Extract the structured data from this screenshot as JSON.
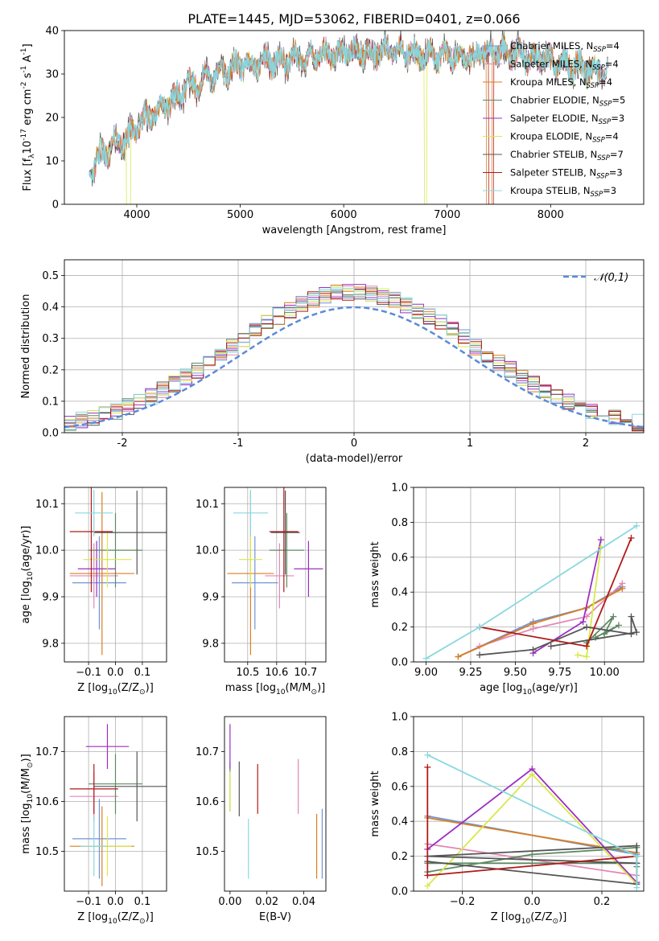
{
  "figure": {
    "title": "PLATE=1445, MJD=53062, FIBERID=0401, z=0.066"
  },
  "colors": {
    "Chabrier MILES": "#6f94d8",
    "Salpeter MILES": "#e387b5",
    "Kroupa MILES": "#d97f22",
    "Chabrier ELODIE": "#5d8a62",
    "Salpeter ELODIE": "#9b2fc2",
    "Kroupa ELODIE": "#d9e84a",
    "Chabrier STELIB": "#555555",
    "Salpeter STELIB": "#b01a1a",
    "Kroupa STELIB": "#88d8df"
  },
  "chart_data": [
    {
      "id": "spectrum",
      "type": "line",
      "title": "PLATE=1445, MJD=53062, FIBERID=0401, z=0.066",
      "xlabel": "wavelength [Angstrom, rest frame]",
      "ylabel": "Flux [f$_\\lambda$10$^{-17}$ erg cm$^{-2}$ s$^{-1}$ A$^{-1}$]",
      "xlim": [
        3300,
        8900
      ],
      "ylim": [
        0,
        40
      ],
      "xticks": [
        4000,
        5000,
        6000,
        7000,
        8000
      ],
      "yticks": [
        0,
        10,
        20,
        30,
        40
      ],
      "grid": false,
      "legend_position": "top-right",
      "legend": [
        {
          "model": "Chabrier MILES",
          "label": "Chabrier MILES, N",
          "sub": "SSP",
          "suffix": "=4"
        },
        {
          "model": "Salpeter MILES",
          "label": "Salpeter MILES, N",
          "sub": "SSP",
          "suffix": "=4"
        },
        {
          "model": "Kroupa MILES",
          "label": "Kroupa MILES, N",
          "sub": "SSP",
          "suffix": "=4"
        },
        {
          "model": "Chabrier ELODIE",
          "label": "Chabrier ELODIE, N",
          "sub": "SSP",
          "suffix": "=5"
        },
        {
          "model": "Salpeter ELODIE",
          "label": "Salpeter ELODIE, N",
          "sub": "SSP",
          "suffix": "=3"
        },
        {
          "model": "Kroupa ELODIE",
          "label": "Kroupa ELODIE, N",
          "sub": "SSP",
          "suffix": "=4"
        },
        {
          "model": "Chabrier STELIB",
          "label": "Chabrier STELIB, N",
          "sub": "SSP",
          "suffix": "=7"
        },
        {
          "model": "Salpeter STELIB",
          "label": "Salpeter STELIB, N",
          "sub": "SSP",
          "suffix": "=3"
        },
        {
          "model": "Kroupa STELIB",
          "label": "Kroupa STELIB, N",
          "sub": "SSP",
          "suffix": "=3"
        }
      ],
      "continuum": [
        [
          3550,
          8
        ],
        [
          3650,
          11
        ],
        [
          3800,
          14
        ],
        [
          3900,
          15
        ],
        [
          4000,
          18
        ],
        [
          4100,
          20
        ],
        [
          4200,
          22
        ],
        [
          4300,
          23
        ],
        [
          4400,
          25
        ],
        [
          4500,
          27
        ],
        [
          4600,
          28
        ],
        [
          4700,
          29
        ],
        [
          4800,
          30
        ],
        [
          4900,
          31
        ],
        [
          5000,
          32
        ],
        [
          5100,
          32
        ],
        [
          5200,
          33
        ],
        [
          5300,
          33
        ],
        [
          5400,
          33
        ],
        [
          5500,
          33
        ],
        [
          5600,
          34
        ],
        [
          5800,
          34
        ],
        [
          6000,
          35
        ],
        [
          6200,
          35
        ],
        [
          6400,
          35
        ],
        [
          6600,
          35
        ],
        [
          6800,
          34
        ],
        [
          7000,
          34
        ],
        [
          7200,
          34
        ],
        [
          7400,
          35
        ],
        [
          7600,
          35
        ],
        [
          7800,
          34
        ],
        [
          8000,
          33
        ],
        [
          8200,
          32
        ],
        [
          8400,
          31
        ],
        [
          8550,
          30
        ]
      ],
      "dropouts": [
        {
          "model": "Kroupa ELODIE",
          "x": 3920,
          "range": [
            3900,
            3940
          ]
        },
        {
          "model": "Kroupa ELODIE",
          "x": 6790,
          "range": [
            6780,
            6800
          ]
        },
        {
          "model": "Kroupa MILES",
          "x": 7400,
          "range": [
            7380,
            7430
          ]
        },
        {
          "model": "Salpeter STELIB",
          "x": 7420,
          "range": [
            7400,
            7450
          ]
        }
      ]
    },
    {
      "id": "residuals",
      "type": "histogram",
      "xlabel": "(data-model)/error",
      "ylabel": "Normed distribution",
      "xlim": [
        -2.5,
        2.5
      ],
      "ylim": [
        0,
        0.55
      ],
      "xticks": [
        -2,
        -1,
        0,
        1,
        2
      ],
      "yticks": [
        0.0,
        0.1,
        0.2,
        0.3,
        0.4,
        0.5
      ],
      "grid": true,
      "legend_position": "top-right",
      "reference_label": "$\\mathcal{N}(0,1)$",
      "bin_width": 0.1
    },
    {
      "id": "age-vs-z",
      "type": "scatter",
      "xlabel": "Z [log$_{10}$(Z/Z$_\\odot$)]",
      "ylabel": "age  [log$_{10}$(age/yr)]",
      "xlim": [
        -0.19,
        0.19
      ],
      "ylim": [
        9.76,
        10.135
      ],
      "xticks": [
        -0.1,
        0.0,
        0.1
      ],
      "yticks": [
        9.8,
        9.9,
        10.0,
        10.1
      ],
      "grid": true,
      "points": [
        {
          "model": "Chabrier MILES",
          "x": -0.06,
          "xerr": 0.1,
          "y": 9.93,
          "yerr": 0.1
        },
        {
          "model": "Salpeter MILES",
          "x": -0.08,
          "xerr": 0.09,
          "y": 9.945,
          "yerr": 0.07
        },
        {
          "model": "Kroupa MILES",
          "x": -0.05,
          "xerr": 0.12,
          "y": 9.95,
          "yerr": 0.175
        },
        {
          "model": "Chabrier ELODIE",
          "x": 0.0,
          "xerr": 0.1,
          "y": 10.0,
          "yerr": 0.08
        },
        {
          "model": "Salpeter ELODIE",
          "x": -0.07,
          "xerr": 0.07,
          "y": 9.96,
          "yerr": 0.06
        },
        {
          "model": "Kroupa ELODIE",
          "x": -0.03,
          "xerr": 0.09,
          "y": 9.98,
          "yerr": 0.06
        },
        {
          "model": "Chabrier STELIB",
          "x": 0.08,
          "xerr": 0.16,
          "y": 10.038,
          "yerr": 0.09
        },
        {
          "model": "Salpeter STELIB",
          "x": -0.09,
          "xerr": 0.08,
          "y": 10.04,
          "yerr": 0.13
        },
        {
          "model": "Kroupa STELIB",
          "x": -0.08,
          "xerr": 0.07,
          "y": 10.08,
          "yerr": 0.05
        }
      ]
    },
    {
      "id": "age-vs-mass",
      "type": "scatter",
      "xlabel": "mass [log$_{10}$(M/M$_\\odot$)]",
      "xlim": [
        10.42,
        10.77
      ],
      "ylim": [
        9.76,
        10.135
      ],
      "xticks": [
        10.5,
        10.6,
        10.7
      ],
      "yticks": [
        9.8,
        9.9,
        10.0,
        10.1
      ],
      "grid": true,
      "points": [
        {
          "model": "Chabrier MILES",
          "x": 10.525,
          "xerr": 0.08,
          "y": 9.93,
          "yerr": 0.1
        },
        {
          "model": "Salpeter MILES",
          "x": 10.61,
          "xerr": 0.05,
          "y": 9.945,
          "yerr": 0.07
        },
        {
          "model": "Kroupa MILES",
          "x": 10.51,
          "xerr": 0.08,
          "y": 9.95,
          "yerr": 0.175
        },
        {
          "model": "Chabrier ELODIE",
          "x": 10.635,
          "xerr": 0.06,
          "y": 10.0,
          "yerr": 0.08
        },
        {
          "model": "Salpeter ELODIE",
          "x": 10.71,
          "xerr": 0.05,
          "y": 9.96,
          "yerr": 0.06
        },
        {
          "model": "Kroupa ELODIE",
          "x": 10.51,
          "xerr": 0.04,
          "y": 9.98,
          "yerr": 0.06
        },
        {
          "model": "Chabrier STELIB",
          "x": 10.63,
          "xerr": 0.05,
          "y": 10.038,
          "yerr": 0.09
        },
        {
          "model": "Salpeter STELIB",
          "x": 10.625,
          "xerr": 0.05,
          "y": 10.04,
          "yerr": 0.13
        },
        {
          "model": "Kroupa STELIB",
          "x": 10.51,
          "xerr": 0.06,
          "y": 10.08,
          "yerr": 0.05
        }
      ]
    },
    {
      "id": "weight-vs-age",
      "type": "line",
      "xlabel": "age  [log$_{10}$(age/yr)]",
      "ylabel": "mass weight",
      "xlim": [
        8.93,
        10.22
      ],
      "ylim": [
        0,
        1
      ],
      "xticks": [
        9.0,
        9.25,
        9.5,
        9.75,
        10.0
      ],
      "xtick_labels": [
        "9.00",
        "9.25",
        "9.50",
        "9.75",
        "10.00"
      ],
      "yticks": [
        0.0,
        0.2,
        0.4,
        0.6,
        0.8,
        1.0
      ],
      "grid": true,
      "series": [
        {
          "model": "Chabrier MILES",
          "points": [
            [
              9.18,
              0.03
            ],
            [
              9.6,
              0.23
            ],
            [
              9.9,
              0.31
            ],
            [
              10.1,
              0.43
            ]
          ]
        },
        {
          "model": "Salpeter MILES",
          "points": [
            [
              9.3,
              0.09
            ],
            [
              9.6,
              0.19
            ],
            [
              9.9,
              0.26
            ],
            [
              10.1,
              0.45
            ]
          ]
        },
        {
          "model": "Kroupa MILES",
          "points": [
            [
              9.18,
              0.03
            ],
            [
              9.6,
              0.22
            ],
            [
              9.9,
              0.31
            ],
            [
              10.1,
              0.42
            ]
          ]
        },
        {
          "model": "Chabrier ELODIE",
          "points": [
            [
              9.9,
              0.11
            ],
            [
              10.05,
              0.26
            ],
            [
              10.0,
              0.16
            ],
            [
              10.08,
              0.21
            ],
            [
              9.95,
              0.14
            ]
          ]
        },
        {
          "model": "Salpeter ELODIE",
          "points": [
            [
              9.6,
              0.05
            ],
            [
              9.88,
              0.23
            ],
            [
              9.98,
              0.7
            ]
          ]
        },
        {
          "model": "Kroupa ELODIE",
          "points": [
            [
              9.85,
              0.04
            ],
            [
              9.9,
              0.03
            ],
            [
              9.98,
              0.66
            ]
          ]
        },
        {
          "model": "Chabrier STELIB",
          "points": [
            [
              9.3,
              0.04
            ],
            [
              9.6,
              0.07
            ],
            [
              9.9,
              0.2
            ],
            [
              10.15,
              0.16
            ],
            [
              10.15,
              0.26
            ],
            [
              10.18,
              0.17
            ],
            [
              9.7,
              0.09
            ]
          ]
        },
        {
          "model": "Salpeter STELIB",
          "points": [
            [
              9.3,
              0.2
            ],
            [
              9.9,
              0.09
            ],
            [
              10.15,
              0.71
            ]
          ]
        },
        {
          "model": "Kroupa STELIB",
          "points": [
            [
              9.0,
              0.02
            ],
            [
              9.3,
              0.2
            ],
            [
              10.18,
              0.78
            ]
          ]
        }
      ]
    },
    {
      "id": "mass-vs-z",
      "type": "scatter",
      "xlabel": "Z [log$_{10}$(Z/Z$_\\odot$)]",
      "ylabel": "mass [log$_{10}$(M/M$_\\odot$)]",
      "xlim": [
        -0.19,
        0.19
      ],
      "ylim": [
        10.42,
        10.77
      ],
      "xticks": [
        -0.1,
        0.0,
        0.1
      ],
      "yticks": [
        10.5,
        10.6,
        10.7
      ],
      "grid": true,
      "points": [
        {
          "model": "Chabrier MILES",
          "x": -0.06,
          "xerr": 0.1,
          "y": 10.525,
          "yerr": 0.08
        },
        {
          "model": "Salpeter MILES",
          "x": -0.08,
          "xerr": 0.09,
          "y": 10.61,
          "yerr": 0.05
        },
        {
          "model": "Kroupa MILES",
          "x": -0.05,
          "xerr": 0.12,
          "y": 10.51,
          "yerr": 0.08
        },
        {
          "model": "Chabrier ELODIE",
          "x": 0.0,
          "xerr": 0.1,
          "y": 10.635,
          "yerr": 0.06
        },
        {
          "model": "Salpeter ELODIE",
          "x": -0.03,
          "xerr": 0.08,
          "y": 10.71,
          "yerr": 0.045
        },
        {
          "model": "Kroupa ELODIE",
          "x": -0.03,
          "xerr": 0.09,
          "y": 10.51,
          "yerr": 0.06
        },
        {
          "model": "Chabrier STELIB",
          "x": 0.08,
          "xerr": 0.16,
          "y": 10.63,
          "yerr": 0.07
        },
        {
          "model": "Salpeter STELIB",
          "x": -0.08,
          "xerr": 0.09,
          "y": 10.625,
          "yerr": 0.05
        },
        {
          "model": "Kroupa STELIB",
          "x": -0.08,
          "xerr": 0.05,
          "y": 10.51,
          "yerr": 0.06
        }
      ]
    },
    {
      "id": "mass-vs-ebv",
      "type": "scatter",
      "xlabel": "E(B-V)",
      "xlim": [
        -0.003,
        0.052
      ],
      "ylim": [
        10.42,
        10.77
      ],
      "xticks": [
        0.0,
        0.02,
        0.04
      ],
      "xtick_labels": [
        "0.00",
        "0.02",
        "0.04"
      ],
      "yticks": [
        10.5,
        10.6,
        10.7
      ],
      "grid": false,
      "points": [
        {
          "model": "Chabrier MILES",
          "x": 0.05,
          "y": 10.515,
          "yerr": 0.07
        },
        {
          "model": "Salpeter MILES",
          "x": 0.037,
          "y": 10.63,
          "yerr": 0.055
        },
        {
          "model": "Kroupa MILES",
          "x": 0.047,
          "y": 10.51,
          "yerr": 0.065
        },
        {
          "model": "Chabrier ELODIE",
          "x": 0.0,
          "y": 10.63,
          "yerr": 0.05
        },
        {
          "model": "Salpeter ELODIE",
          "x": 0.0,
          "y": 10.71,
          "yerr": 0.045
        },
        {
          "model": "Kroupa ELODIE",
          "x": 0.0,
          "y": 10.62,
          "yerr": 0.04
        },
        {
          "model": "Chabrier STELIB",
          "x": 0.005,
          "y": 10.625,
          "yerr": 0.055
        },
        {
          "model": "Salpeter STELIB",
          "x": 0.015,
          "y": 10.625,
          "yerr": 0.05
        },
        {
          "model": "Kroupa STELIB",
          "x": 0.01,
          "y": 10.505,
          "yerr": 0.06
        }
      ]
    },
    {
      "id": "weight-vs-z",
      "type": "line",
      "xlabel": "Z [log$_{10}$(Z/Z$_\\odot$)]",
      "ylabel": "mass weight",
      "xlim": [
        -0.34,
        0.32
      ],
      "ylim": [
        0,
        1
      ],
      "xticks": [
        -0.2,
        0.0,
        0.2
      ],
      "yticks": [
        0.0,
        0.2,
        0.4,
        0.6,
        0.8,
        1.0
      ],
      "grid": true,
      "series": [
        {
          "model": "Chabrier MILES",
          "points": [
            [
              -0.3,
              0.43
            ],
            [
              0.3,
              0.21
            ]
          ]
        },
        {
          "model": "Salpeter MILES",
          "points": [
            [
              -0.3,
              0.27
            ],
            [
              0.3,
              0.09
            ]
          ]
        },
        {
          "model": "Kroupa MILES",
          "points": [
            [
              -0.3,
              0.42
            ],
            [
              0.3,
              0.22
            ]
          ]
        },
        {
          "model": "Chabrier ELODIE",
          "points": [
            [
              -0.3,
              0.11
            ],
            [
              0.0,
              0.21
            ],
            [
              0.3,
              0.25
            ],
            [
              0.3,
              0.14
            ],
            [
              0.3,
              0.16
            ],
            [
              0.0,
              0.16
            ],
            [
              -0.3,
              0.16
            ]
          ]
        },
        {
          "model": "Salpeter ELODIE",
          "points": [
            [
              -0.3,
              0.24
            ],
            [
              0.0,
              0.7
            ],
            [
              0.3,
              0.05
            ]
          ]
        },
        {
          "model": "Kroupa ELODIE",
          "points": [
            [
              -0.3,
              0.03
            ],
            [
              0.0,
              0.67
            ],
            [
              0.3,
              0.04
            ]
          ]
        },
        {
          "model": "Chabrier STELIB",
          "points": [
            [
              -0.3,
              0.17
            ],
            [
              0.3,
              0.04
            ],
            [
              0.3,
              0.26
            ],
            [
              -0.3,
              0.2
            ],
            [
              0.3,
              0.16
            ]
          ]
        },
        {
          "model": "Salpeter STELIB",
          "points": [
            [
              -0.3,
              0.71
            ],
            [
              -0.3,
              0.09
            ],
            [
              0.3,
              0.2
            ]
          ]
        },
        {
          "model": "Kroupa STELIB",
          "points": [
            [
              -0.3,
              0.78
            ],
            [
              0.3,
              0.2
            ],
            [
              0.3,
              0.02
            ]
          ]
        }
      ]
    }
  ]
}
